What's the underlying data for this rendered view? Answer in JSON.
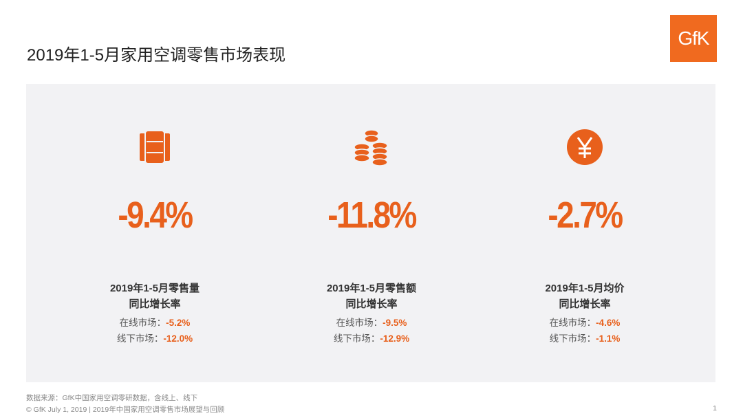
{
  "title": "2019年1-5月家用空调零售市场表现",
  "logo": "GfK",
  "accent": "#e8601c",
  "metrics": [
    {
      "icon": "barrels-icon",
      "value": "-9.4%",
      "label1": "2019年1-5月零售量",
      "label2": "同比增长率",
      "online_label": "在线市场：",
      "online": "-5.2%",
      "offline_label": "线下市场：",
      "offline": "-12.0%"
    },
    {
      "icon": "coin-stacks-icon",
      "value": "-11.8%",
      "label1": "2019年1-5月零售额",
      "label2": "同比增长率",
      "online_label": "在线市场：",
      "online": "-9.5%",
      "offline_label": "线下市场：",
      "offline": "-12.9%"
    },
    {
      "icon": "yen-icon",
      "value": "-2.7%",
      "label1": "2019年1-5月均价",
      "label2": "同比增长率",
      "online_label": "在线市场：",
      "online": "-4.6%",
      "offline_label": "线下市场：",
      "offline": "-1.1%"
    }
  ],
  "footer": {
    "source": "数据来源：GfK中国家用空调零研数据，含线上、线下",
    "copyright": "© GfK July 1, 2019 | 2019年中国家用空调零售市场展望与回顾",
    "page": "1"
  }
}
